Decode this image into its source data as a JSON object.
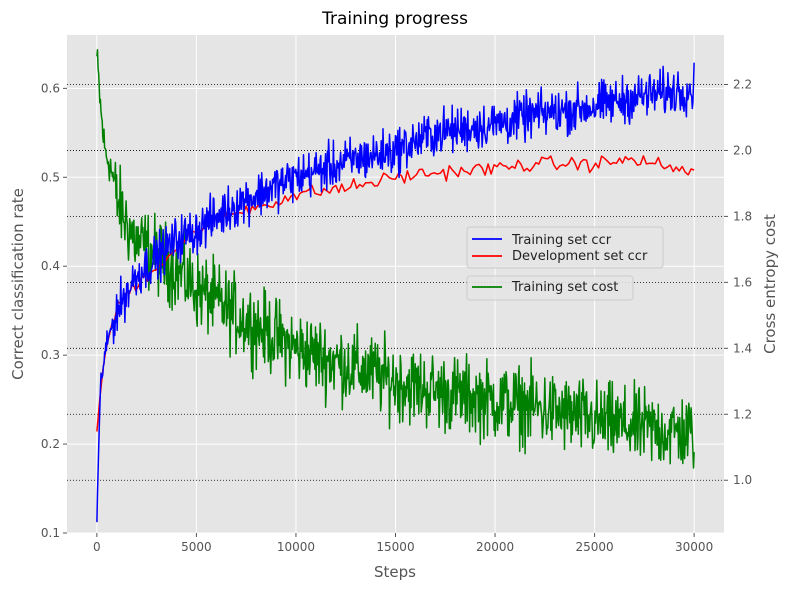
{
  "chart_data": {
    "type": "line",
    "title": "Training progress",
    "xlabel": "Steps",
    "ylabel_left": "Correct classification rate",
    "ylabel_right": "Cross entropy cost",
    "xlim": [
      -1500,
      31500
    ],
    "ylim_left": [
      0.1,
      0.66
    ],
    "ylim_right": [
      0.84,
      2.35
    ],
    "x_ticks": [
      0,
      5000,
      10000,
      15000,
      20000,
      25000,
      30000
    ],
    "y_ticks_left": [
      0.1,
      0.2,
      0.3,
      0.4,
      0.5,
      0.6
    ],
    "y_ticks_right": [
      1.0,
      1.2,
      1.4,
      1.6,
      1.8,
      2.0,
      2.2
    ],
    "grid": true,
    "right_grid_style": "dotted",
    "legend_placement": "center-right",
    "series": [
      {
        "name": "Training set ccr",
        "axis": "left",
        "color": "#0000ff",
        "x": [
          0,
          100,
          200,
          400,
          700,
          1000,
          1500,
          2000,
          3000,
          4000,
          5000,
          7000,
          10000,
          13000,
          15000,
          17000,
          20000,
          22000,
          25000,
          27000,
          30000
        ],
        "values": [
          0.12,
          0.2,
          0.27,
          0.3,
          0.33,
          0.35,
          0.37,
          0.39,
          0.41,
          0.43,
          0.44,
          0.47,
          0.5,
          0.52,
          0.53,
          0.55,
          0.56,
          0.57,
          0.58,
          0.59,
          0.6
        ],
        "noise": 0.022
      },
      {
        "name": "Development set ccr",
        "axis": "left",
        "color": "#ff0000",
        "x": [
          0,
          100,
          200,
          400,
          700,
          1000,
          1500,
          2000,
          3000,
          4000,
          5000,
          7000,
          10000,
          13000,
          15000,
          17000,
          20000,
          22000,
          25000,
          27000,
          30000
        ],
        "values": [
          0.21,
          0.23,
          0.27,
          0.3,
          0.33,
          0.35,
          0.37,
          0.38,
          0.4,
          0.42,
          0.44,
          0.46,
          0.48,
          0.49,
          0.5,
          0.505,
          0.51,
          0.515,
          0.515,
          0.52,
          0.505
        ],
        "noise": 0.007
      },
      {
        "name": "Training set cost",
        "axis": "right",
        "color": "#008000",
        "x": [
          0,
          100,
          200,
          400,
          700,
          1000,
          1500,
          2000,
          3000,
          4000,
          5000,
          7000,
          10000,
          13000,
          15000,
          17000,
          20000,
          22000,
          25000,
          27000,
          30000
        ],
        "values": [
          2.28,
          2.2,
          2.12,
          2.0,
          1.95,
          1.85,
          1.78,
          1.72,
          1.68,
          1.64,
          1.58,
          1.5,
          1.4,
          1.34,
          1.3,
          1.27,
          1.24,
          1.22,
          1.18,
          1.16,
          1.14
        ],
        "noise": 0.1
      }
    ]
  }
}
